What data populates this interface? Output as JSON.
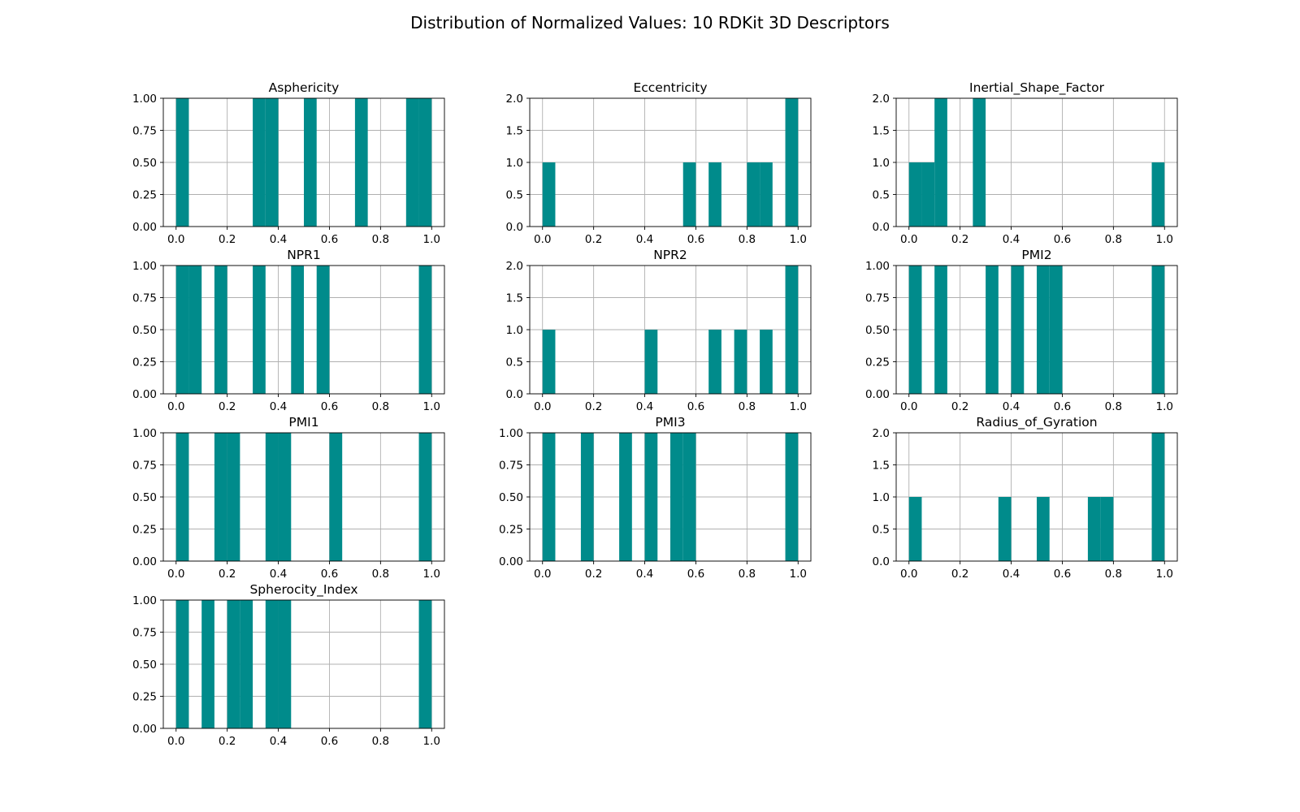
{
  "title": "Distribution of Normalized Values: 10 RDKit 3D Descriptors",
  "colors": {
    "bar": "#008b8b"
  },
  "chart_data": [
    {
      "type": "bar",
      "title": "Asphericity",
      "bin_width": 0.05,
      "xlim": [
        -0.05,
        1.05
      ],
      "ylim": [
        0,
        1.0
      ],
      "xticks": [
        "0.0",
        "0.2",
        "0.4",
        "0.6",
        "0.8",
        "1.0"
      ],
      "yticks": [
        "0.00",
        "0.25",
        "0.50",
        "0.75",
        "1.00"
      ],
      "bins": [
        {
          "x": 0.0,
          "count": 1
        },
        {
          "x": 0.3,
          "count": 1
        },
        {
          "x": 0.35,
          "count": 1
        },
        {
          "x": 0.5,
          "count": 1
        },
        {
          "x": 0.7,
          "count": 1
        },
        {
          "x": 0.9,
          "count": 1
        },
        {
          "x": 0.95,
          "count": 1
        }
      ]
    },
    {
      "type": "bar",
      "title": "Eccentricity",
      "bin_width": 0.05,
      "xlim": [
        -0.05,
        1.05
      ],
      "ylim": [
        0,
        2.0
      ],
      "xticks": [
        "0.0",
        "0.2",
        "0.4",
        "0.6",
        "0.8",
        "1.0"
      ],
      "yticks": [
        "0.0",
        "0.5",
        "1.0",
        "1.5",
        "2.0"
      ],
      "bins": [
        {
          "x": 0.0,
          "count": 1
        },
        {
          "x": 0.55,
          "count": 1
        },
        {
          "x": 0.65,
          "count": 1
        },
        {
          "x": 0.8,
          "count": 1
        },
        {
          "x": 0.85,
          "count": 1
        },
        {
          "x": 0.95,
          "count": 2
        }
      ]
    },
    {
      "type": "bar",
      "title": "Inertial_Shape_Factor",
      "bin_width": 0.05,
      "xlim": [
        -0.05,
        1.05
      ],
      "ylim": [
        0,
        2.0
      ],
      "xticks": [
        "0.0",
        "0.2",
        "0.4",
        "0.6",
        "0.8",
        "1.0"
      ],
      "yticks": [
        "0.0",
        "0.5",
        "1.0",
        "1.5",
        "2.0"
      ],
      "bins": [
        {
          "x": 0.0,
          "count": 1
        },
        {
          "x": 0.05,
          "count": 1
        },
        {
          "x": 0.1,
          "count": 2
        },
        {
          "x": 0.25,
          "count": 2
        },
        {
          "x": 0.95,
          "count": 1
        }
      ]
    },
    {
      "type": "bar",
      "title": "NPR1",
      "bin_width": 0.05,
      "xlim": [
        -0.05,
        1.05
      ],
      "ylim": [
        0,
        1.0
      ],
      "xticks": [
        "0.0",
        "0.2",
        "0.4",
        "0.6",
        "0.8",
        "1.0"
      ],
      "yticks": [
        "0.00",
        "0.25",
        "0.50",
        "0.75",
        "1.00"
      ],
      "bins": [
        {
          "x": 0.0,
          "count": 1
        },
        {
          "x": 0.05,
          "count": 1
        },
        {
          "x": 0.15,
          "count": 1
        },
        {
          "x": 0.3,
          "count": 1
        },
        {
          "x": 0.45,
          "count": 1
        },
        {
          "x": 0.55,
          "count": 1
        },
        {
          "x": 0.95,
          "count": 1
        }
      ]
    },
    {
      "type": "bar",
      "title": "NPR2",
      "bin_width": 0.05,
      "xlim": [
        -0.05,
        1.05
      ],
      "ylim": [
        0,
        2.0
      ],
      "xticks": [
        "0.0",
        "0.2",
        "0.4",
        "0.6",
        "0.8",
        "1.0"
      ],
      "yticks": [
        "0.0",
        "0.5",
        "1.0",
        "1.5",
        "2.0"
      ],
      "bins": [
        {
          "x": 0.0,
          "count": 1
        },
        {
          "x": 0.4,
          "count": 1
        },
        {
          "x": 0.65,
          "count": 1
        },
        {
          "x": 0.75,
          "count": 1
        },
        {
          "x": 0.85,
          "count": 1
        },
        {
          "x": 0.95,
          "count": 2
        }
      ]
    },
    {
      "type": "bar",
      "title": "PMI2",
      "bin_width": 0.05,
      "xlim": [
        -0.05,
        1.05
      ],
      "ylim": [
        0,
        1.0
      ],
      "xticks": [
        "0.0",
        "0.2",
        "0.4",
        "0.6",
        "0.8",
        "1.0"
      ],
      "yticks": [
        "0.00",
        "0.25",
        "0.50",
        "0.75",
        "1.00"
      ],
      "bins": [
        {
          "x": 0.0,
          "count": 1
        },
        {
          "x": 0.1,
          "count": 1
        },
        {
          "x": 0.3,
          "count": 1
        },
        {
          "x": 0.4,
          "count": 1
        },
        {
          "x": 0.5,
          "count": 1
        },
        {
          "x": 0.55,
          "count": 1
        },
        {
          "x": 0.95,
          "count": 1
        }
      ]
    },
    {
      "type": "bar",
      "title": "PMI1",
      "bin_width": 0.05,
      "xlim": [
        -0.05,
        1.05
      ],
      "ylim": [
        0,
        1.0
      ],
      "xticks": [
        "0.0",
        "0.2",
        "0.4",
        "0.6",
        "0.8",
        "1.0"
      ],
      "yticks": [
        "0.00",
        "0.25",
        "0.50",
        "0.75",
        "1.00"
      ],
      "bins": [
        {
          "x": 0.0,
          "count": 1
        },
        {
          "x": 0.15,
          "count": 1
        },
        {
          "x": 0.2,
          "count": 1
        },
        {
          "x": 0.35,
          "count": 1
        },
        {
          "x": 0.4,
          "count": 1
        },
        {
          "x": 0.6,
          "count": 1
        },
        {
          "x": 0.95,
          "count": 1
        }
      ]
    },
    {
      "type": "bar",
      "title": "PMI3",
      "bin_width": 0.05,
      "xlim": [
        -0.05,
        1.05
      ],
      "ylim": [
        0,
        1.0
      ],
      "xticks": [
        "0.0",
        "0.2",
        "0.4",
        "0.6",
        "0.8",
        "1.0"
      ],
      "yticks": [
        "0.00",
        "0.25",
        "0.50",
        "0.75",
        "1.00"
      ],
      "bins": [
        {
          "x": 0.0,
          "count": 1
        },
        {
          "x": 0.15,
          "count": 1
        },
        {
          "x": 0.3,
          "count": 1
        },
        {
          "x": 0.4,
          "count": 1
        },
        {
          "x": 0.5,
          "count": 1
        },
        {
          "x": 0.55,
          "count": 1
        },
        {
          "x": 0.95,
          "count": 1
        }
      ]
    },
    {
      "type": "bar",
      "title": "Radius_of_Gyration",
      "bin_width": 0.05,
      "xlim": [
        -0.05,
        1.05
      ],
      "ylim": [
        0,
        2.0
      ],
      "xticks": [
        "0.0",
        "0.2",
        "0.4",
        "0.6",
        "0.8",
        "1.0"
      ],
      "yticks": [
        "0.0",
        "0.5",
        "1.0",
        "1.5",
        "2.0"
      ],
      "bins": [
        {
          "x": 0.0,
          "count": 1
        },
        {
          "x": 0.35,
          "count": 1
        },
        {
          "x": 0.5,
          "count": 1
        },
        {
          "x": 0.7,
          "count": 1
        },
        {
          "x": 0.75,
          "count": 1
        },
        {
          "x": 0.95,
          "count": 2
        }
      ]
    },
    {
      "type": "bar",
      "title": "Spherocity_Index",
      "bin_width": 0.05,
      "xlim": [
        -0.05,
        1.05
      ],
      "ylim": [
        0,
        1.0
      ],
      "xticks": [
        "0.0",
        "0.2",
        "0.4",
        "0.6",
        "0.8",
        "1.0"
      ],
      "yticks": [
        "0.00",
        "0.25",
        "0.50",
        "0.75",
        "1.00"
      ],
      "bins": [
        {
          "x": 0.0,
          "count": 1
        },
        {
          "x": 0.1,
          "count": 1
        },
        {
          "x": 0.2,
          "count": 1
        },
        {
          "x": 0.25,
          "count": 1
        },
        {
          "x": 0.35,
          "count": 1
        },
        {
          "x": 0.4,
          "count": 1
        },
        {
          "x": 0.95,
          "count": 1
        }
      ]
    }
  ]
}
